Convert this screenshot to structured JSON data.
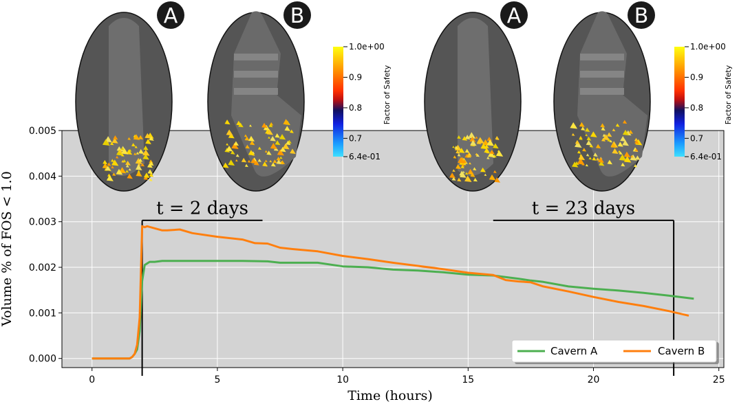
{
  "chart_data": {
    "type": "line",
    "title": "",
    "xlabel": "Time (hours)",
    "ylabel": "Volume % of FOS < 1.0",
    "xlim": [
      -1.2,
      25.2
    ],
    "ylim": [
      -0.0002,
      0.005
    ],
    "xticks": [
      0,
      5,
      10,
      15,
      20,
      25
    ],
    "yticks": [
      0.0,
      0.001,
      0.002,
      0.003,
      0.004,
      0.005
    ],
    "xtick_labels": [
      "0",
      "5",
      "10",
      "15",
      "20",
      "25"
    ],
    "ytick_labels": [
      "0.000",
      "0.001",
      "0.002",
      "0.003",
      "0.004",
      "0.005"
    ],
    "grid": true,
    "legend_position": "bottom-right",
    "series": [
      {
        "name": "Cavern A",
        "color": "#4caf50",
        "x": [
          0,
          1.0,
          1.5,
          1.6,
          1.7,
          1.8,
          1.9,
          2.0,
          2.1,
          2.3,
          2.5,
          2.8,
          3.0,
          4.0,
          5.0,
          6.0,
          7.0,
          7.5,
          8.0,
          9.0,
          10.0,
          11.0,
          12.0,
          13.0,
          14.0,
          15.0,
          16.0,
          17.0,
          17.5,
          18.0,
          19.0,
          20.0,
          21.0,
          22.0,
          23.0,
          24.0
        ],
        "y": [
          0.0,
          0.0,
          0.0,
          3e-05,
          0.0001,
          0.0002,
          0.0006,
          0.0017,
          0.00205,
          0.00212,
          0.00212,
          0.00214,
          0.00214,
          0.00214,
          0.00214,
          0.00214,
          0.00213,
          0.0021,
          0.0021,
          0.0021,
          0.00202,
          0.002,
          0.00195,
          0.00193,
          0.00189,
          0.00184,
          0.00182,
          0.00175,
          0.00171,
          0.00168,
          0.00158,
          0.00153,
          0.00149,
          0.00144,
          0.00138,
          0.00131
        ]
      },
      {
        "name": "Cavern B",
        "color": "#ff7f0e",
        "x": [
          0,
          1.0,
          1.5,
          1.6,
          1.7,
          1.8,
          1.9,
          2.0,
          2.1,
          2.2,
          2.4,
          2.6,
          2.8,
          3.0,
          3.5,
          4.0,
          5.0,
          6.0,
          6.5,
          7.0,
          7.5,
          8.0,
          9.0,
          10.0,
          11.0,
          12.0,
          13.0,
          14.0,
          15.0,
          16.0,
          16.5,
          17.0,
          17.5,
          18.0,
          19.0,
          20.0,
          21.0,
          22.0,
          23.0,
          23.8
        ],
        "y": [
          0.0,
          0.0,
          0.0,
          3e-05,
          0.0001,
          0.0003,
          0.0009,
          0.0029,
          0.00288,
          0.0029,
          0.00287,
          0.00284,
          0.00281,
          0.00281,
          0.00283,
          0.00275,
          0.00267,
          0.00261,
          0.00253,
          0.00252,
          0.00243,
          0.0024,
          0.00235,
          0.00225,
          0.00218,
          0.0021,
          0.00203,
          0.00196,
          0.00188,
          0.00183,
          0.00172,
          0.00169,
          0.00167,
          0.00158,
          0.00147,
          0.00135,
          0.00124,
          0.00115,
          0.00104,
          0.00094
        ]
      }
    ],
    "annotations": [
      {
        "text": "t = 2 days",
        "x_start": 2.0,
        "x_end": 6.8,
        "y": 0.00303
      },
      {
        "text": "t = 23 days",
        "x_start": 16.0,
        "x_end": 23.2,
        "y": 0.00303
      }
    ]
  },
  "insets": {
    "labels": [
      "A",
      "B",
      "A",
      "B"
    ],
    "colorbar": {
      "title": "Factor of Safety",
      "tick_labels": [
        "1.0e+00",
        "0.9",
        "0.8",
        "0.7",
        "6.4e-01"
      ],
      "tick_values": [
        1.0,
        0.9,
        0.8,
        0.7,
        0.64
      ],
      "range": [
        0.64,
        1.0
      ]
    }
  }
}
